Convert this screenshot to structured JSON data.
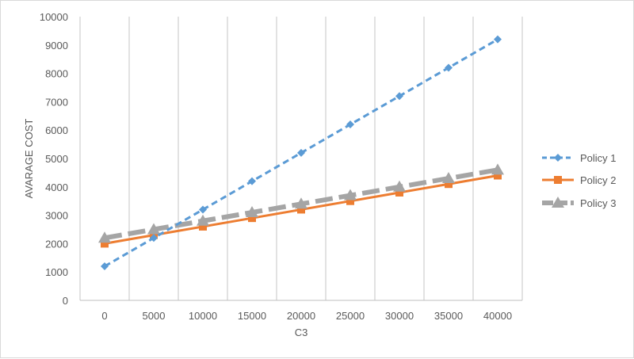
{
  "chart_data": {
    "type": "line",
    "title": "",
    "xlabel": "C3",
    "ylabel": "AVARAGE COST",
    "categories": [
      "0",
      "5000",
      "10000",
      "15000",
      "20000",
      "25000",
      "30000",
      "35000",
      "40000"
    ],
    "ylim": [
      0,
      10000
    ],
    "yticks": [
      "0",
      "1000",
      "2000",
      "3000",
      "4000",
      "5000",
      "6000",
      "7000",
      "8000",
      "9000",
      "10000"
    ],
    "grid": "vertical",
    "legend": "right",
    "series": [
      {
        "name": "Policy 1",
        "color": "#5b9bd5",
        "style": "dashed",
        "marker": "diamond",
        "values": [
          1200,
          2200,
          3200,
          4200,
          5200,
          6200,
          7200,
          8200,
          9200
        ]
      },
      {
        "name": "Policy 2",
        "color": "#ed7d31",
        "style": "solid",
        "marker": "square",
        "values": [
          2000,
          2300,
          2600,
          2900,
          3200,
          3500,
          3800,
          4100,
          4400
        ]
      },
      {
        "name": "Policy 3",
        "color": "#a5a5a5",
        "style": "dashed-thick",
        "marker": "triangle",
        "values": [
          2200,
          2500,
          2800,
          3100,
          3400,
          3700,
          4000,
          4300,
          4600
        ]
      }
    ]
  }
}
